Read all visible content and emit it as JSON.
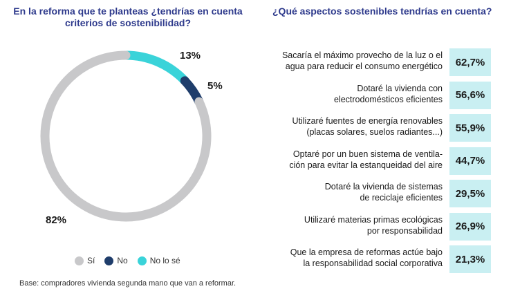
{
  "left_title": "En la reforma que te planteas ¿tendrías en cuenta criterios de sostenibilidad?",
  "right_title": "¿Qué aspectos sostenibles tendrías en cuenta?",
  "footnote": "Base: compradores vivienda segunda mano que van a reformar.",
  "colors": {
    "si": "#c8c8ca",
    "no": "#1f3d6b",
    "nolose": "#3ad3d9",
    "bar_bg": "#c9eff2",
    "title": "#2e3a8c"
  },
  "chart_data": [
    {
      "type": "pie",
      "title": "En la reforma que te planteas ¿tendrías en cuenta criterios de sostenibilidad?",
      "categories": [
        "Sí",
        "No",
        "No lo sé"
      ],
      "values": [
        82,
        5,
        13
      ],
      "labels": [
        "82%",
        "5%",
        "13%"
      ],
      "legend": "bottom"
    },
    {
      "type": "bar",
      "title": "¿Qué aspectos sostenibles tendrías en cuenta?",
      "categories": [
        "Sacaría el máximo provecho de la luz o el agua para reducir el consumo energético",
        "Dotaré la vivienda con electrodomésticos eficientes",
        "Utilizaré fuentes de energía renovables (placas solares, suelos radiantes...)",
        "Optaré por un buen sistema de ventilación para evitar la estanqueidad del aire",
        "Dotaré la vivienda de sistemas de reciclaje eficientes",
        "Utilizaré materias primas ecológicas por responsabilidad",
        "Que la empresa de reformas actúe bajo la responsabilidad social corporativa"
      ],
      "values": [
        62.7,
        56.6,
        55.9,
        44.7,
        29.5,
        26.9,
        21.3
      ],
      "value_labels": [
        "62,7%",
        "56,6%",
        "55,9%",
        "44,7%",
        "29,5%",
        "26,9%",
        "21,3%"
      ],
      "text_lines": [
        [
          "Sacaría el máximo provecho de la luz o el",
          "agua para reducir el consumo energético"
        ],
        [
          "Dotaré la vivienda con",
          "electrodomésticos eficientes"
        ],
        [
          "Utilizaré fuentes de energía renovables",
          "(placas solares, suelos radiantes...)"
        ],
        [
          "Optaré por un buen sistema de ventila-",
          "ción para evitar la estanqueidad del aire"
        ],
        [
          "Dotaré la vivienda de sistemas",
          "de reciclaje eficientes"
        ],
        [
          "Utilizaré materias primas ecológicas",
          "por responsabilidad"
        ],
        [
          "Que la empresa de reformas actúe bajo",
          "la responsabilidad social corporativa"
        ]
      ]
    }
  ]
}
